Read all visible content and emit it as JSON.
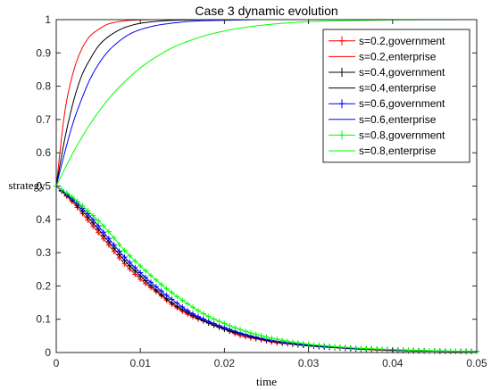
{
  "chart_data": {
    "type": "line",
    "title": "Case 3 dynamic evolution",
    "xlabel": "time",
    "ylabel": "strategy",
    "xlim": [
      0,
      0.05
    ],
    "ylim": [
      0,
      1
    ],
    "x_ticks": [
      0,
      0.01,
      0.02,
      0.03,
      0.04,
      0.05
    ],
    "x_tick_labels": [
      "0",
      "0.01",
      "0.02",
      "0.03",
      "0.04",
      "0.05"
    ],
    "y_ticks": [
      0,
      0.1,
      0.2,
      0.3,
      0.4,
      0.5,
      0.6,
      0.7,
      0.8,
      0.9,
      1
    ],
    "y_tick_labels": [
      "0",
      "0.1",
      "0.2",
      "0.3",
      "0.4",
      "0.5",
      "0.6",
      "0.7",
      "0.8",
      "0.9",
      "1"
    ],
    "grid": false,
    "legend_position": "top-right",
    "series": [
      {
        "name": "s=0.2,government",
        "color": "#ff0000",
        "marker": "plus",
        "x": [
          0,
          0.002,
          0.004,
          0.006,
          0.008,
          0.01,
          0.012,
          0.014,
          0.016,
          0.018,
          0.02,
          0.022,
          0.024,
          0.026,
          0.028,
          0.03,
          0.033,
          0.036,
          0.04,
          0.045,
          0.05
        ],
        "y": [
          0.5,
          0.45,
          0.39,
          0.33,
          0.27,
          0.22,
          0.18,
          0.14,
          0.11,
          0.09,
          0.07,
          0.05,
          0.04,
          0.03,
          0.025,
          0.02,
          0.015,
          0.01,
          0.006,
          0.004,
          0.003
        ]
      },
      {
        "name": "s=0.2,enterprise",
        "color": "#ff0000",
        "marker": "none",
        "x": [
          0,
          0.001,
          0.002,
          0.003,
          0.004,
          0.005,
          0.006,
          0.007,
          0.008,
          0.009,
          0.01,
          0.012,
          0.014,
          0.02,
          0.03,
          0.05
        ],
        "y": [
          0.5,
          0.72,
          0.84,
          0.91,
          0.95,
          0.97,
          0.985,
          0.992,
          0.996,
          0.998,
          0.999,
          1,
          1,
          1,
          1,
          1
        ]
      },
      {
        "name": "s=0.4,government",
        "color": "#000000",
        "marker": "plus",
        "x": [
          0,
          0.002,
          0.004,
          0.006,
          0.008,
          0.01,
          0.012,
          0.014,
          0.016,
          0.018,
          0.02,
          0.022,
          0.024,
          0.026,
          0.028,
          0.03,
          0.033,
          0.036,
          0.04,
          0.045,
          0.05
        ],
        "y": [
          0.5,
          0.455,
          0.4,
          0.34,
          0.28,
          0.23,
          0.185,
          0.145,
          0.115,
          0.09,
          0.07,
          0.055,
          0.042,
          0.033,
          0.026,
          0.02,
          0.015,
          0.011,
          0.007,
          0.004,
          0.003
        ]
      },
      {
        "name": "s=0.4,enterprise",
        "color": "#000000",
        "marker": "none",
        "x": [
          0,
          0.001,
          0.002,
          0.003,
          0.004,
          0.005,
          0.006,
          0.007,
          0.008,
          0.009,
          0.01,
          0.012,
          0.014,
          0.016,
          0.02,
          0.03,
          0.05
        ],
        "y": [
          0.5,
          0.64,
          0.75,
          0.83,
          0.88,
          0.92,
          0.945,
          0.962,
          0.975,
          0.983,
          0.989,
          0.995,
          0.998,
          0.999,
          1,
          1,
          1
        ]
      },
      {
        "name": "s=0.6,government",
        "color": "#0000ff",
        "marker": "plus",
        "x": [
          0,
          0.002,
          0.004,
          0.006,
          0.008,
          0.01,
          0.012,
          0.014,
          0.016,
          0.018,
          0.02,
          0.022,
          0.024,
          0.026,
          0.028,
          0.03,
          0.033,
          0.036,
          0.04,
          0.045,
          0.05
        ],
        "y": [
          0.5,
          0.46,
          0.41,
          0.35,
          0.29,
          0.24,
          0.195,
          0.155,
          0.12,
          0.095,
          0.075,
          0.058,
          0.045,
          0.035,
          0.028,
          0.022,
          0.016,
          0.012,
          0.008,
          0.005,
          0.003
        ]
      },
      {
        "name": "s=0.6,enterprise",
        "color": "#0000ff",
        "marker": "none",
        "x": [
          0,
          0.001,
          0.002,
          0.003,
          0.004,
          0.005,
          0.006,
          0.007,
          0.008,
          0.009,
          0.01,
          0.012,
          0.014,
          0.016,
          0.018,
          0.02,
          0.025,
          0.03,
          0.05
        ],
        "y": [
          0.5,
          0.6,
          0.69,
          0.76,
          0.82,
          0.865,
          0.9,
          0.925,
          0.945,
          0.96,
          0.97,
          0.983,
          0.99,
          0.995,
          0.997,
          0.998,
          1,
          1,
          1
        ]
      },
      {
        "name": "s=0.8,government",
        "color": "#00ff00",
        "marker": "plus",
        "x": [
          0,
          0.002,
          0.004,
          0.006,
          0.008,
          0.01,
          0.012,
          0.014,
          0.016,
          0.018,
          0.02,
          0.022,
          0.024,
          0.026,
          0.028,
          0.03,
          0.033,
          0.036,
          0.04,
          0.045,
          0.05
        ],
        "y": [
          0.5,
          0.465,
          0.42,
          0.37,
          0.31,
          0.26,
          0.215,
          0.175,
          0.14,
          0.11,
          0.087,
          0.068,
          0.053,
          0.041,
          0.032,
          0.025,
          0.018,
          0.013,
          0.009,
          0.005,
          0.003
        ]
      },
      {
        "name": "s=0.8,enterprise",
        "color": "#00ff00",
        "marker": "none",
        "x": [
          0,
          0.002,
          0.004,
          0.006,
          0.008,
          0.01,
          0.012,
          0.014,
          0.016,
          0.018,
          0.02,
          0.022,
          0.024,
          0.026,
          0.028,
          0.03,
          0.035,
          0.04,
          0.05
        ],
        "y": [
          0.5,
          0.6,
          0.685,
          0.755,
          0.81,
          0.855,
          0.89,
          0.918,
          0.938,
          0.954,
          0.966,
          0.975,
          0.982,
          0.987,
          0.991,
          0.994,
          0.997,
          0.999,
          1
        ]
      }
    ]
  }
}
